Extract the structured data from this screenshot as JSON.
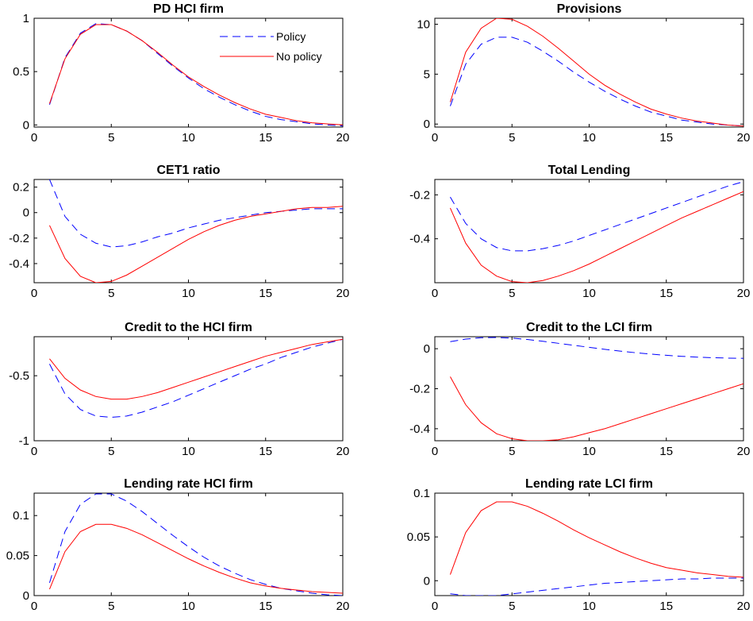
{
  "figure": {
    "legend": {
      "placement": "top-right",
      "panel": 0
    },
    "styles": {
      "Policy": {
        "color": "#0000ff",
        "dash": "dashed"
      },
      "No policy": {
        "color": "#ff0000",
        "dash": "solid"
      }
    }
  },
  "chart_data": [
    {
      "type": "line",
      "title": "PD HCI firm",
      "xlim": [
        0,
        20
      ],
      "ylim": [
        -0.02,
        1.0
      ],
      "xticks": [
        0,
        5,
        10,
        15,
        20
      ],
      "xticklabels": [
        "0",
        "5",
        "10",
        "15",
        "20"
      ],
      "yticks": [
        0,
        0.5,
        1
      ],
      "yticklabels": [
        "0",
        "0.5",
        "1"
      ],
      "x": [
        1,
        2,
        3,
        4,
        5,
        6,
        7,
        8,
        9,
        10,
        11,
        12,
        13,
        14,
        15,
        16,
        17,
        18,
        19,
        20
      ],
      "series": [
        {
          "name": "Policy",
          "values": [
            0.19,
            0.63,
            0.86,
            0.95,
            0.94,
            0.88,
            0.79,
            0.67,
            0.55,
            0.44,
            0.34,
            0.26,
            0.19,
            0.13,
            0.08,
            0.05,
            0.03,
            0.01,
            0.0,
            -0.01
          ]
        },
        {
          "name": "No policy",
          "values": [
            0.2,
            0.62,
            0.85,
            0.94,
            0.94,
            0.88,
            0.79,
            0.68,
            0.56,
            0.45,
            0.36,
            0.28,
            0.21,
            0.15,
            0.1,
            0.07,
            0.04,
            0.02,
            0.01,
            0.0
          ]
        }
      ]
    },
    {
      "type": "line",
      "title": "Provisions",
      "xlim": [
        0,
        20
      ],
      "ylim": [
        -0.3,
        10.6
      ],
      "xticks": [
        0,
        5,
        10,
        15,
        20
      ],
      "xticklabels": [
        "0",
        "5",
        "10",
        "15",
        "20"
      ],
      "yticks": [
        0,
        5,
        10
      ],
      "yticklabels": [
        "0",
        "5",
        "10"
      ],
      "x": [
        1,
        2,
        3,
        4,
        5,
        6,
        7,
        8,
        9,
        10,
        11,
        12,
        13,
        14,
        15,
        16,
        17,
        18,
        19,
        20
      ],
      "series": [
        {
          "name": "Policy",
          "values": [
            1.8,
            6.0,
            8.0,
            8.7,
            8.7,
            8.2,
            7.3,
            6.3,
            5.2,
            4.2,
            3.3,
            2.5,
            1.8,
            1.2,
            0.8,
            0.4,
            0.2,
            0.0,
            -0.1,
            -0.2
          ]
        },
        {
          "name": "No policy",
          "values": [
            2.2,
            7.2,
            9.6,
            10.6,
            10.5,
            9.8,
            8.8,
            7.6,
            6.3,
            5.0,
            3.9,
            3.0,
            2.2,
            1.5,
            1.0,
            0.6,
            0.3,
            0.1,
            -0.1,
            -0.2
          ]
        }
      ]
    },
    {
      "type": "line",
      "title": "CET1 ratio",
      "xlim": [
        0,
        20
      ],
      "ylim": [
        -0.55,
        0.26
      ],
      "xticks": [
        0,
        5,
        10,
        15,
        20
      ],
      "xticklabels": [
        "0",
        "5",
        "10",
        "15",
        "20"
      ],
      "yticks": [
        -0.4,
        -0.2,
        0,
        0.2
      ],
      "yticklabels": [
        "-0.4",
        "-0.2",
        "0",
        "0.2"
      ],
      "x": [
        1,
        2,
        3,
        4,
        5,
        6,
        7,
        8,
        9,
        10,
        11,
        12,
        13,
        14,
        15,
        16,
        17,
        18,
        19,
        20
      ],
      "series": [
        {
          "name": "Policy",
          "values": [
            0.26,
            -0.03,
            -0.17,
            -0.24,
            -0.27,
            -0.26,
            -0.23,
            -0.19,
            -0.16,
            -0.12,
            -0.09,
            -0.06,
            -0.04,
            -0.02,
            0.0,
            0.01,
            0.02,
            0.03,
            0.03,
            0.03
          ]
        },
        {
          "name": "No policy",
          "values": [
            -0.1,
            -0.36,
            -0.5,
            -0.55,
            -0.54,
            -0.49,
            -0.42,
            -0.35,
            -0.28,
            -0.21,
            -0.15,
            -0.1,
            -0.06,
            -0.03,
            -0.01,
            0.01,
            0.03,
            0.04,
            0.04,
            0.05
          ]
        }
      ]
    },
    {
      "type": "line",
      "title": "Total Lending",
      "xlim": [
        0,
        20
      ],
      "ylim": [
        -0.6,
        -0.13
      ],
      "xticks": [
        0,
        5,
        10,
        15,
        20
      ],
      "xticklabels": [
        "0",
        "5",
        "10",
        "15",
        "20"
      ],
      "yticks": [
        -0.4,
        -0.2
      ],
      "yticklabels": [
        "-0.4",
        "-0.2"
      ],
      "x": [
        1,
        2,
        3,
        4,
        5,
        6,
        7,
        8,
        9,
        10,
        11,
        12,
        13,
        14,
        15,
        16,
        17,
        18,
        19,
        20
      ],
      "series": [
        {
          "name": "Policy",
          "values": [
            -0.21,
            -0.33,
            -0.4,
            -0.44,
            -0.455,
            -0.455,
            -0.445,
            -0.43,
            -0.41,
            -0.385,
            -0.36,
            -0.335,
            -0.31,
            -0.285,
            -0.26,
            -0.235,
            -0.21,
            -0.185,
            -0.16,
            -0.14
          ]
        },
        {
          "name": "No policy",
          "values": [
            -0.26,
            -0.42,
            -0.52,
            -0.57,
            -0.595,
            -0.6,
            -0.59,
            -0.57,
            -0.545,
            -0.515,
            -0.48,
            -0.445,
            -0.41,
            -0.375,
            -0.34,
            -0.305,
            -0.275,
            -0.245,
            -0.215,
            -0.185
          ]
        }
      ]
    },
    {
      "type": "line",
      "title": "Credit to the HCI firm",
      "xlim": [
        0,
        20
      ],
      "ylim": [
        -1.0,
        -0.2
      ],
      "xticks": [
        0,
        5,
        10,
        15,
        20
      ],
      "xticklabels": [
        "0",
        "5",
        "10",
        "15",
        "20"
      ],
      "yticks": [
        -1,
        -0.5
      ],
      "yticklabels": [
        "-1",
        "-0.5"
      ],
      "x": [
        1,
        2,
        3,
        4,
        5,
        6,
        7,
        8,
        9,
        10,
        11,
        12,
        13,
        14,
        15,
        16,
        17,
        18,
        19,
        20
      ],
      "series": [
        {
          "name": "Policy",
          "values": [
            -0.41,
            -0.64,
            -0.76,
            -0.81,
            -0.82,
            -0.81,
            -0.78,
            -0.74,
            -0.7,
            -0.65,
            -0.6,
            -0.55,
            -0.5,
            -0.45,
            -0.41,
            -0.36,
            -0.32,
            -0.28,
            -0.25,
            -0.22
          ]
        },
        {
          "name": "No policy",
          "values": [
            -0.37,
            -0.52,
            -0.61,
            -0.66,
            -0.68,
            -0.68,
            -0.66,
            -0.63,
            -0.59,
            -0.55,
            -0.51,
            -0.47,
            -0.43,
            -0.39,
            -0.35,
            -0.32,
            -0.29,
            -0.26,
            -0.24,
            -0.22
          ]
        }
      ]
    },
    {
      "type": "line",
      "title": "Credit to the LCI firm",
      "xlim": [
        0,
        20
      ],
      "ylim": [
        -0.46,
        0.06
      ],
      "xticks": [
        0,
        5,
        10,
        15,
        20
      ],
      "xticklabels": [
        "0",
        "5",
        "10",
        "15",
        "20"
      ],
      "yticks": [
        -0.4,
        -0.2,
        0
      ],
      "yticklabels": [
        "-0.4",
        "-0.2",
        "0"
      ],
      "x": [
        1,
        2,
        3,
        4,
        5,
        6,
        7,
        8,
        9,
        10,
        11,
        12,
        13,
        14,
        15,
        16,
        17,
        18,
        19,
        20
      ],
      "series": [
        {
          "name": "Policy",
          "values": [
            0.035,
            0.048,
            0.055,
            0.056,
            0.053,
            0.046,
            0.037,
            0.027,
            0.017,
            0.007,
            -0.003,
            -0.012,
            -0.02,
            -0.027,
            -0.033,
            -0.038,
            -0.042,
            -0.045,
            -0.047,
            -0.048
          ]
        },
        {
          "name": "No policy",
          "values": [
            -0.14,
            -0.28,
            -0.37,
            -0.425,
            -0.45,
            -0.46,
            -0.46,
            -0.455,
            -0.44,
            -0.42,
            -0.4,
            -0.375,
            -0.35,
            -0.325,
            -0.3,
            -0.275,
            -0.25,
            -0.225,
            -0.2,
            -0.175
          ]
        }
      ]
    },
    {
      "type": "line",
      "title": "Lending rate HCI firm",
      "xlim": [
        0,
        20
      ],
      "ylim": [
        0,
        0.128
      ],
      "xticks": [
        0,
        5,
        10,
        15,
        20
      ],
      "xticklabels": [
        "0",
        "5",
        "10",
        "15",
        "20"
      ],
      "yticks": [
        0,
        0.05,
        0.1
      ],
      "yticklabels": [
        "0",
        "0.05",
        "0.1"
      ],
      "x": [
        1,
        2,
        3,
        4,
        5,
        6,
        7,
        8,
        9,
        10,
        11,
        12,
        13,
        14,
        15,
        16,
        17,
        18,
        19,
        20
      ],
      "series": [
        {
          "name": "Policy",
          "values": [
            0.016,
            0.08,
            0.114,
            0.127,
            0.127,
            0.118,
            0.105,
            0.09,
            0.075,
            0.061,
            0.048,
            0.037,
            0.028,
            0.02,
            0.014,
            0.009,
            0.006,
            0.003,
            0.001,
            0.0
          ]
        },
        {
          "name": "No policy",
          "values": [
            0.008,
            0.055,
            0.08,
            0.089,
            0.089,
            0.084,
            0.076,
            0.066,
            0.056,
            0.046,
            0.037,
            0.029,
            0.022,
            0.016,
            0.012,
            0.009,
            0.007,
            0.005,
            0.004,
            0.003
          ]
        }
      ]
    },
    {
      "type": "line",
      "title": "Lending rate LCI firm",
      "xlim": [
        0,
        20
      ],
      "ylim": [
        -0.017,
        0.1
      ],
      "xticks": [
        0,
        5,
        10,
        15,
        20
      ],
      "xticklabels": [
        "0",
        "5",
        "10",
        "15",
        "20"
      ],
      "yticks": [
        0,
        0.05,
        0.1
      ],
      "yticklabels": [
        "0",
        "0.05",
        "0.1"
      ],
      "x": [
        1,
        2,
        3,
        4,
        5,
        6,
        7,
        8,
        9,
        10,
        11,
        12,
        13,
        14,
        15,
        16,
        17,
        18,
        19,
        20
      ],
      "series": [
        {
          "name": "Policy",
          "values": [
            -0.015,
            -0.017,
            -0.017,
            -0.017,
            -0.015,
            -0.013,
            -0.011,
            -0.009,
            -0.007,
            -0.005,
            -0.003,
            -0.002,
            -0.001,
            0.0,
            0.001,
            0.002,
            0.002,
            0.003,
            0.003,
            0.003
          ]
        },
        {
          "name": "No policy",
          "values": [
            0.007,
            0.055,
            0.08,
            0.09,
            0.09,
            0.085,
            0.077,
            0.068,
            0.058,
            0.049,
            0.041,
            0.033,
            0.026,
            0.02,
            0.015,
            0.012,
            0.009,
            0.007,
            0.005,
            0.004
          ]
        }
      ]
    }
  ]
}
